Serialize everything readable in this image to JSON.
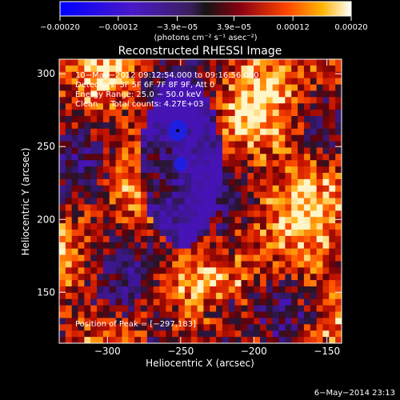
{
  "chart_data": {
    "type": "heatmap",
    "title": "Reconstructed RHESSI Image",
    "xlabel": "Heliocentric X (arcsec)",
    "ylabel": "Heliocentric Y (arcsec)",
    "xlim": [
      -333,
      -140
    ],
    "ylim": [
      115,
      310
    ],
    "xticks": [
      -300,
      -250,
      -200,
      -150
    ],
    "xtick_labels": [
      "−300",
      "−250",
      "−200",
      "−150"
    ],
    "yticks": [
      150,
      200,
      250,
      300
    ],
    "ytick_labels": [
      "150",
      "200",
      "250",
      "300"
    ],
    "colorbar": {
      "range": [
        -0.0002,
        0.0002
      ],
      "ticks": [
        -0.0002,
        -0.00012,
        -3.9e-05,
        3.9e-05,
        0.00012,
        0.0002
      ],
      "tick_labels": [
        "−0.00020",
        "−0.00012",
        "−3.9e−05",
        "3.9e−05",
        "0.00012",
        "0.00020"
      ],
      "units_label": "(photons cm⁻² s⁻¹ asec⁻²)"
    },
    "annotations": [
      "10−May−2012 09:12:54.000 to 09:16:56.000",
      "Detectors: 3F 5F 6F 7F 8F 9F, Att 0",
      "Energy Range: 25.0 − 50.0 keV",
      "Clean     Total counts: 4.27E+03"
    ],
    "peak_label": "Position of Peak = [−297,183]",
    "peak_position": [
      -297,
      183
    ],
    "blue_features": [
      {
        "x": -252,
        "y": 261,
        "size": 12
      },
      {
        "x": -250,
        "y": 238,
        "size": 8
      }
    ],
    "footer_text": "6−May−2014 23:13"
  }
}
